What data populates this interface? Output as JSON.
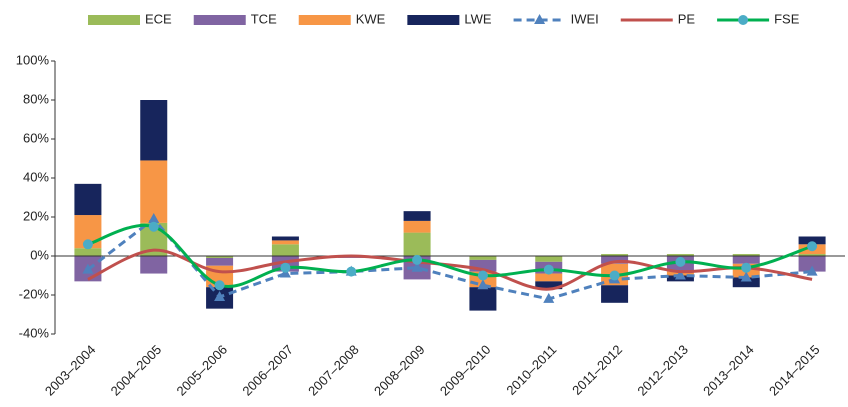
{
  "chart_data": {
    "type": "combo",
    "categories": [
      "2003–2004",
      "2004–2005",
      "2005–2006",
      "2006–2007",
      "2007–2008",
      "2008–2009",
      "2009–2010",
      "2010–2011",
      "2011–2012",
      "2012–2013",
      "2013–2014",
      "2014–2015"
    ],
    "series": [
      {
        "name": "ECE",
        "type": "bar",
        "color": "#9bbb59",
        "values": [
          4,
          17,
          -1,
          6,
          0,
          12,
          -2,
          -3,
          1,
          1,
          1,
          1
        ]
      },
      {
        "name": "TCE",
        "type": "bar",
        "color": "#8064a2",
        "values": [
          -13,
          -9,
          -4,
          -8,
          -1,
          -12,
          -6,
          -6,
          -4,
          -8,
          -4,
          -8
        ]
      },
      {
        "name": "KWE",
        "type": "bar",
        "color": "#f79646",
        "values": [
          17,
          32,
          -11,
          2,
          0,
          6,
          -8,
          -4,
          -11,
          -2,
          -7,
          5
        ]
      },
      {
        "name": "LWE",
        "type": "bar",
        "color": "#17255c",
        "values": [
          16,
          31,
          -11,
          2,
          0,
          5,
          -12,
          -4,
          -9,
          -3,
          -5,
          4
        ]
      },
      {
        "name": "IWEI",
        "type": "line",
        "color": "#4f81bd",
        "dashed": true,
        "marker": "triangle",
        "values": [
          -7,
          19,
          -21,
          -9,
          -8,
          -6,
          -15,
          -22,
          -12,
          -10,
          -11,
          -8
        ]
      },
      {
        "name": "PE",
        "type": "line",
        "color": "#c0504d",
        "smooth": true,
        "values": [
          -12,
          3,
          -8,
          -3,
          0,
          -3,
          -7,
          -17,
          -3,
          -8,
          -6,
          -12
        ]
      },
      {
        "name": "FSE",
        "type": "line",
        "color": "#00b050",
        "smooth": true,
        "marker": "circle",
        "marker_color": "#4bacc6",
        "values": [
          6,
          15,
          -15,
          -6,
          -8,
          -2,
          -10,
          -7,
          -10,
          -3,
          -6,
          5
        ]
      }
    ],
    "ylim": [
      -40,
      100
    ],
    "yticks": [
      {
        "value": -40,
        "label": "-40%"
      },
      {
        "value": -20,
        "label": "-20%"
      },
      {
        "value": 0,
        "label": "0%"
      },
      {
        "value": 20,
        "label": "20%"
      },
      {
        "value": 40,
        "label": "40%"
      },
      {
        "value": 60,
        "label": "60%"
      },
      {
        "value": 80,
        "label": "80%"
      },
      {
        "value": 100,
        "label": "100%"
      }
    ],
    "legend": "top"
  }
}
